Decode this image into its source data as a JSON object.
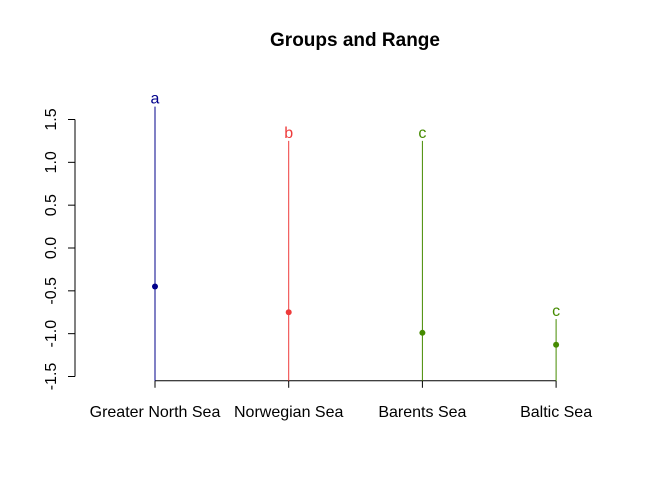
{
  "chart_data": {
    "type": "scatter",
    "title": "Groups and Range",
    "xlabel": "",
    "ylabel": "",
    "categories": [
      "Greater North Sea",
      "Norwegian Sea",
      "Barents Sea",
      "Baltic Sea"
    ],
    "points": [
      {
        "category": "Greater North Sea",
        "value": -0.45,
        "range_min": -1.55,
        "range_max": 1.65,
        "group": "a",
        "color": "#00008B"
      },
      {
        "category": "Norwegian Sea",
        "value": -0.75,
        "range_min": -1.55,
        "range_max": 1.25,
        "group": "b",
        "color": "#EE3B3B"
      },
      {
        "category": "Barents Sea",
        "value": -0.99,
        "range_min": -1.55,
        "range_max": 1.25,
        "group": "c",
        "color": "#458B00"
      },
      {
        "category": "Baltic Sea",
        "value": -1.13,
        "range_min": -1.55,
        "range_max": -0.83,
        "group": "c",
        "color": "#458B00"
      }
    ],
    "yticks": [
      "-1.5",
      "-1.0",
      "-0.5",
      "0.0",
      "0.5",
      "1.0",
      "1.5"
    ],
    "ylim": [
      -1.55,
      1.7
    ],
    "grid": false,
    "legend": "none"
  }
}
